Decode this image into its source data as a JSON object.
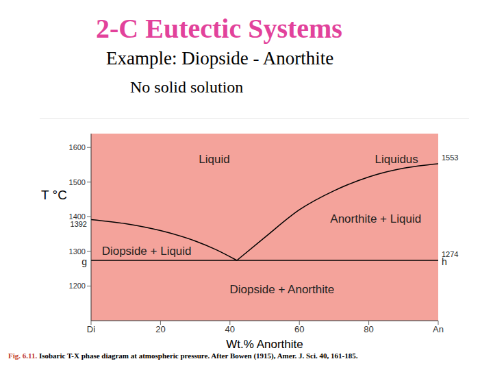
{
  "slide": {
    "title": "2-C Eutectic Systems",
    "subtitle": "Example: Diopside - Anorthite",
    "note": "No solid solution",
    "caption_label": "Fig. 6.11.",
    "caption": "Isobaric T-X phase diagram at atmospheric pressure. After Bowen (1915), Amer. J. Sci. 40, 161-185."
  },
  "chart_data": {
    "type": "line",
    "x_label": "Wt.% Anorthite",
    "y_label": "T °C",
    "xlim": [
      0,
      100
    ],
    "xticks": [
      {
        "value": 0,
        "label": "Di"
      },
      20,
      40,
      60,
      80,
      {
        "value": 100,
        "label": "An"
      }
    ],
    "ylim": [
      1100,
      1640
    ],
    "yticks": [
      1200,
      1300,
      1400,
      1500,
      1600
    ],
    "series": [
      {
        "color": "#000000",
        "x": [
          0,
          10,
          20,
          30,
          36,
          42
        ],
        "values": [
          1392,
          1380,
          1360,
          1330,
          1305,
          1274
        ]
      },
      {
        "color": "#000000",
        "x": [
          42,
          50,
          60,
          70,
          80,
          90,
          100
        ],
        "values": [
          1274,
          1340,
          1420,
          1475,
          1515,
          1540,
          1553
        ]
      },
      {
        "color": "#000000",
        "x": [
          0,
          100
        ],
        "values": [
          1274,
          1274
        ]
      }
    ],
    "annotations": [
      {
        "text": "Liquid",
        "x": 35.5,
        "y": 1566
      },
      {
        "text": "Liquidus",
        "x": 88,
        "y": 1566
      },
      {
        "text": "Anorthite + Liquid",
        "x": 82,
        "y": 1393
      },
      {
        "text": "Diopside + Liquid",
        "x": 16,
        "y": 1300
      },
      {
        "text": "Diopside + Anorthite",
        "x": 55,
        "y": 1190
      },
      {
        "text": "1392",
        "x": 0,
        "y": 1392
      },
      {
        "text": "1553",
        "x": 100,
        "y": 1553
      },
      {
        "text": "1274",
        "x": 100,
        "y": 1274
      },
      {
        "text": "g",
        "x": 0,
        "y": 1274
      },
      {
        "text": "h",
        "x": 100,
        "y": 1274
      }
    ]
  }
}
